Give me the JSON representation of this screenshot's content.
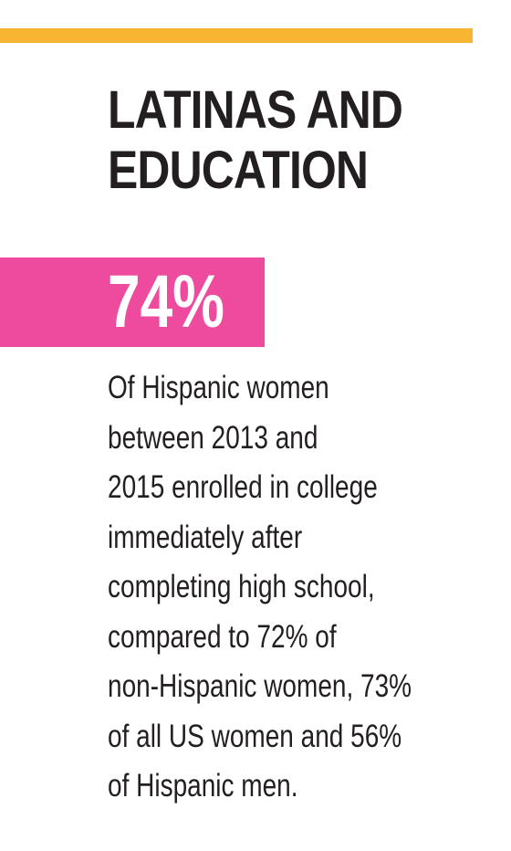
{
  "title": [
    "LATINAS AND",
    "EDUCATION"
  ],
  "stat": {
    "value": "74%"
  },
  "description": [
    "Of Hispanic women",
    "between 2013 and",
    "2015 enrolled in college",
    "immediately after",
    "completing high school,",
    "compared to 72% of",
    "non-Hispanic women, 73%",
    "of all US women and 56%",
    "of Hispanic men."
  ],
  "colors": {
    "accent_bar": "#f7b531",
    "stat_box": "#ee4b9e",
    "text": "#231f20"
  }
}
